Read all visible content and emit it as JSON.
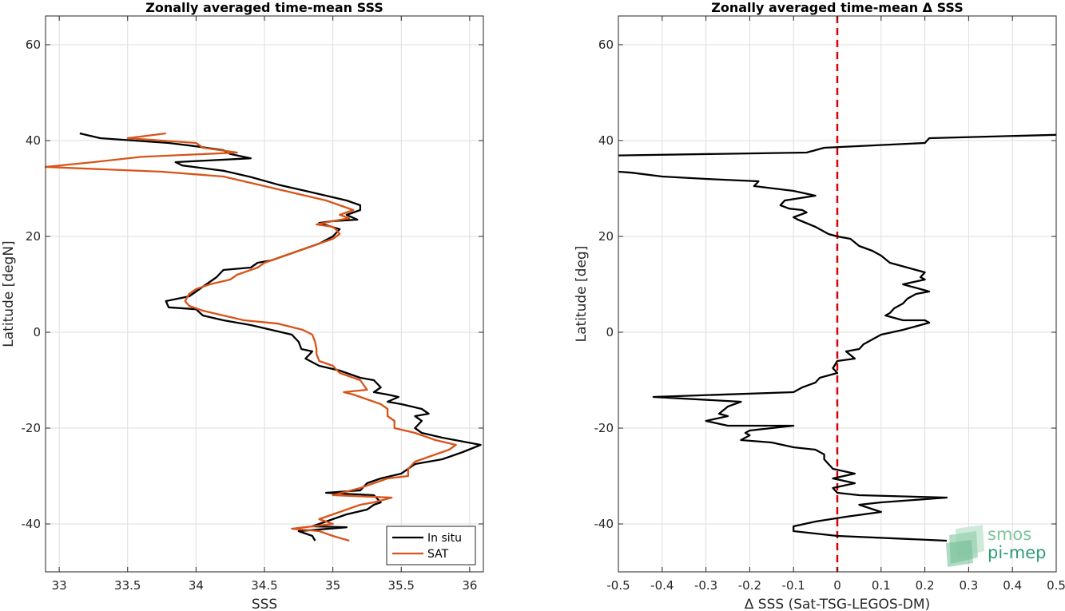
{
  "logo": {
    "line1": "smos",
    "line2": "pi-mep"
  },
  "chart_data": [
    {
      "type": "line",
      "title": "Zonally averaged time-mean SSS",
      "xlabel": "SSS",
      "ylabel": "Latitude [degN]",
      "xlim": [
        32.9,
        36.1
      ],
      "ylim": [
        -50,
        66
      ],
      "xticks": [
        33,
        33.5,
        34,
        34.5,
        35,
        35.5,
        36
      ],
      "yticks": [
        -40,
        -20,
        0,
        20,
        40,
        60
      ],
      "grid": true,
      "legend": "bottom-right",
      "series": [
        {
          "name": "In situ",
          "color": "#000000",
          "points": [
            [
              33.15,
              41.5
            ],
            [
              33.3,
              40.5
            ],
            [
              33.8,
              39.5
            ],
            [
              34.0,
              38.8
            ],
            [
              34.2,
              38.0
            ],
            [
              34.25,
              37.2
            ],
            [
              34.4,
              36.3
            ],
            [
              33.85,
              35.5
            ],
            [
              33.9,
              34.8
            ],
            [
              34.2,
              33.7
            ],
            [
              34.4,
              32.4
            ],
            [
              34.6,
              30.8
            ],
            [
              34.8,
              29.5
            ],
            [
              34.95,
              28.5
            ],
            [
              35.1,
              27.5
            ],
            [
              35.2,
              26.5
            ],
            [
              35.2,
              25.5
            ],
            [
              35.1,
              24.5
            ],
            [
              35.18,
              23.5
            ],
            [
              35.0,
              23.2
            ],
            [
              34.9,
              22.8
            ],
            [
              35.05,
              21.5
            ],
            [
              35.0,
              20.0
            ],
            [
              34.9,
              18.5
            ],
            [
              34.8,
              17.5
            ],
            [
              34.65,
              16.0
            ],
            [
              34.55,
              15.0
            ],
            [
              34.45,
              14.5
            ],
            [
              34.4,
              13.5
            ],
            [
              34.2,
              13.0
            ],
            [
              34.15,
              11.5
            ],
            [
              34.1,
              10.5
            ],
            [
              34.05,
              9.5
            ],
            [
              34.0,
              8.5
            ],
            [
              33.95,
              7.5
            ],
            [
              33.78,
              6.5
            ],
            [
              33.8,
              5.2
            ],
            [
              34.0,
              4.8
            ],
            [
              34.05,
              3.5
            ],
            [
              34.2,
              2.5
            ],
            [
              34.4,
              1.5
            ],
            [
              34.55,
              0.5
            ],
            [
              34.7,
              -0.5
            ],
            [
              34.75,
              -2.0
            ],
            [
              34.77,
              -3.5
            ],
            [
              34.85,
              -4.0
            ],
            [
              34.8,
              -5.5
            ],
            [
              34.9,
              -7.0
            ],
            [
              35.05,
              -8.0
            ],
            [
              35.2,
              -9.5
            ],
            [
              35.3,
              -10.0
            ],
            [
              35.35,
              -11.5
            ],
            [
              35.3,
              -12.5
            ],
            [
              35.4,
              -13.0
            ],
            [
              35.48,
              -13.5
            ],
            [
              35.4,
              -14.5
            ],
            [
              35.5,
              -15.0
            ],
            [
              35.65,
              -16.0
            ],
            [
              35.7,
              -17.0
            ],
            [
              35.6,
              -17.5
            ],
            [
              35.65,
              -18.5
            ],
            [
              35.6,
              -20.0
            ],
            [
              35.65,
              -21.0
            ],
            [
              35.8,
              -22.0
            ],
            [
              36.08,
              -23.5
            ],
            [
              35.95,
              -25.0
            ],
            [
              35.8,
              -26.5
            ],
            [
              35.6,
              -27.5
            ],
            [
              35.55,
              -28.5
            ],
            [
              35.5,
              -29.5
            ],
            [
              35.35,
              -30.5
            ],
            [
              35.25,
              -31.5
            ],
            [
              35.2,
              -33.0
            ],
            [
              34.95,
              -33.5
            ],
            [
              35.3,
              -34.0
            ],
            [
              35.35,
              -35.5
            ],
            [
              35.3,
              -36.0
            ],
            [
              35.25,
              -37.0
            ],
            [
              35.1,
              -38.0
            ],
            [
              35.0,
              -39.0
            ],
            [
              34.85,
              -40.5
            ],
            [
              35.1,
              -40.7
            ],
            [
              34.75,
              -41.5
            ],
            [
              34.85,
              -42.5
            ],
            [
              34.87,
              -43.5
            ]
          ]
        },
        {
          "name": "SAT",
          "color": "#d95319",
          "points": [
            [
              33.78,
              41.5
            ],
            [
              33.5,
              40.5
            ],
            [
              34.0,
              39.5
            ],
            [
              34.05,
              38.5
            ],
            [
              34.3,
              37.5
            ],
            [
              33.6,
              36.6
            ],
            [
              33.25,
              35.5
            ],
            [
              32.9,
              34.5
            ],
            [
              33.75,
              33.5
            ],
            [
              34.2,
              32.5
            ],
            [
              34.35,
              31.5
            ],
            [
              34.5,
              30.5
            ],
            [
              34.65,
              29.5
            ],
            [
              34.8,
              28.5
            ],
            [
              34.95,
              27.5
            ],
            [
              35.05,
              26.5
            ],
            [
              35.15,
              25.5
            ],
            [
              35.05,
              24.5
            ],
            [
              35.12,
              23.8
            ],
            [
              35.0,
              23.2
            ],
            [
              34.88,
              22.5
            ],
            [
              35.0,
              22.0
            ],
            [
              35.02,
              21.5
            ],
            [
              35.05,
              20.5
            ],
            [
              35.0,
              19.5
            ],
            [
              34.85,
              18.0
            ],
            [
              34.75,
              17.0
            ],
            [
              34.6,
              15.5
            ],
            [
              34.5,
              14.5
            ],
            [
              34.45,
              13.5
            ],
            [
              34.3,
              12.0
            ],
            [
              34.25,
              11.0
            ],
            [
              34.1,
              10.0
            ],
            [
              34.0,
              9.0
            ],
            [
              33.95,
              8.0
            ],
            [
              33.92,
              6.5
            ],
            [
              33.95,
              5.5
            ],
            [
              34.05,
              4.5
            ],
            [
              34.2,
              3.5
            ],
            [
              34.35,
              2.5
            ],
            [
              34.6,
              1.8
            ],
            [
              34.78,
              0.5
            ],
            [
              34.85,
              -0.5
            ],
            [
              34.87,
              -2.0
            ],
            [
              34.88,
              -3.5
            ],
            [
              34.88,
              -4.5
            ],
            [
              34.9,
              -6.0
            ],
            [
              35.0,
              -7.0
            ],
            [
              35.05,
              -8.5
            ],
            [
              35.2,
              -10.0
            ],
            [
              35.25,
              -12.0
            ],
            [
              35.08,
              -12.5
            ],
            [
              35.15,
              -13.0
            ],
            [
              35.35,
              -15.0
            ],
            [
              35.4,
              -16.0
            ],
            [
              35.4,
              -17.5
            ],
            [
              35.45,
              -18.5
            ],
            [
              35.45,
              -20.0
            ],
            [
              35.6,
              -21.0
            ],
            [
              35.75,
              -22.5
            ],
            [
              35.9,
              -23.5
            ],
            [
              35.85,
              -24.5
            ],
            [
              35.7,
              -26.0
            ],
            [
              35.6,
              -27.0
            ],
            [
              35.55,
              -28.5
            ],
            [
              35.55,
              -30.0
            ],
            [
              35.4,
              -30.5
            ],
            [
              35.3,
              -31.5
            ],
            [
              35.2,
              -32.5
            ],
            [
              35.0,
              -34.0
            ],
            [
              35.43,
              -34.5
            ],
            [
              35.3,
              -35.5
            ],
            [
              35.2,
              -36.0
            ],
            [
              35.1,
              -37.0
            ],
            [
              35.0,
              -38.0
            ],
            [
              34.9,
              -39.0
            ],
            [
              35.0,
              -40.0
            ],
            [
              34.7,
              -41.0
            ],
            [
              34.9,
              -41.5
            ],
            [
              35.0,
              -42.5
            ],
            [
              35.12,
              -43.5
            ]
          ]
        }
      ]
    },
    {
      "type": "line",
      "title": "Zonally averaged time-mean Δ SSS",
      "xlabel": "Δ SSS (Sat-TSG-LEGOS-DM)",
      "ylabel": "Latitude [deg]",
      "xlim": [
        -0.5,
        0.5
      ],
      "ylim": [
        -50,
        66
      ],
      "xticks": [
        -0.5,
        -0.4,
        -0.3,
        -0.2,
        -0.1,
        0,
        0.1,
        0.2,
        0.3,
        0.4,
        0.5
      ],
      "yticks": [
        -40,
        -20,
        0,
        20,
        40,
        60
      ],
      "grid": true,
      "reference_line": {
        "x": 0,
        "color": "#dd0000",
        "style": "dashed"
      },
      "series": [
        {
          "color": "#000000",
          "points": [
            [
              0.5,
              41.2
            ],
            [
              0.21,
              40.5
            ],
            [
              0.2,
              39.5
            ],
            [
              -0.03,
              38.5
            ],
            [
              -0.07,
              37.5
            ],
            [
              -0.5,
              36.9
            ]
          ]
        },
        {
          "color": "#000000",
          "points": [
            [
              -0.5,
              33.5
            ],
            [
              -0.47,
              33.3
            ],
            [
              -0.4,
              32.5
            ],
            [
              -0.3,
              32.0
            ],
            [
              -0.18,
              31.5
            ],
            [
              -0.19,
              30.5
            ],
            [
              -0.1,
              29.5
            ],
            [
              -0.05,
              28.5
            ],
            [
              -0.12,
              27.5
            ],
            [
              -0.13,
              26.5
            ],
            [
              -0.11,
              25.8
            ],
            [
              -0.08,
              25.5
            ],
            [
              -0.07,
              25.0
            ],
            [
              -0.1,
              24.0
            ],
            [
              -0.09,
              23.5
            ],
            [
              -0.05,
              22.0
            ],
            [
              -0.02,
              20.5
            ],
            [
              0.0,
              20.0
            ],
            [
              0.03,
              19.5
            ],
            [
              0.05,
              18.0
            ],
            [
              0.08,
              17.0
            ],
            [
              0.1,
              16.0
            ],
            [
              0.12,
              14.5
            ],
            [
              0.16,
              13.5
            ],
            [
              0.2,
              12.5
            ],
            [
              0.19,
              11.5
            ],
            [
              0.2,
              11.0
            ],
            [
              0.15,
              10.0
            ],
            [
              0.17,
              9.5
            ],
            [
              0.21,
              8.5
            ],
            [
              0.18,
              8.0
            ],
            [
              0.16,
              7.0
            ],
            [
              0.15,
              6.0
            ],
            [
              0.13,
              5.0
            ],
            [
              0.12,
              4.0
            ],
            [
              0.11,
              3.5
            ],
            [
              0.15,
              2.5
            ],
            [
              0.2,
              2.5
            ],
            [
              0.21,
              2.0
            ],
            [
              0.15,
              0.5
            ],
            [
              0.1,
              -0.5
            ],
            [
              0.08,
              -1.5
            ],
            [
              0.06,
              -2.5
            ],
            [
              0.05,
              -3.5
            ],
            [
              0.02,
              -4.0
            ],
            [
              0.04,
              -5.5
            ],
            [
              0.0,
              -6.0
            ],
            [
              -0.01,
              -7.5
            ],
            [
              0.0,
              -8.5
            ],
            [
              -0.02,
              -9.0
            ],
            [
              -0.04,
              -9.5
            ],
            [
              -0.05,
              -10.5
            ],
            [
              -0.08,
              -11.5
            ],
            [
              -0.1,
              -12.5
            ],
            [
              -0.42,
              -13.5
            ],
            [
              -0.22,
              -14.5
            ],
            [
              -0.25,
              -15.5
            ],
            [
              -0.27,
              -17.0
            ],
            [
              -0.25,
              -17.5
            ],
            [
              -0.3,
              -18.5
            ],
            [
              -0.25,
              -19.5
            ],
            [
              -0.1,
              -19.5
            ],
            [
              -0.2,
              -20.5
            ],
            [
              -0.21,
              -21.0
            ],
            [
              -0.2,
              -21.5
            ],
            [
              -0.22,
              -22.5
            ],
            [
              -0.15,
              -23.0
            ],
            [
              -0.1,
              -24.0
            ],
            [
              -0.05,
              -24.5
            ],
            [
              -0.03,
              -25.5
            ],
            [
              -0.03,
              -26.5
            ],
            [
              -0.02,
              -27.5
            ],
            [
              -0.01,
              -28.5
            ],
            [
              0.04,
              -29.5
            ],
            [
              -0.01,
              -30.5
            ],
            [
              0.04,
              -31.5
            ],
            [
              -0.01,
              -32.5
            ],
            [
              0.0,
              -33.5
            ],
            [
              0.05,
              -34.0
            ],
            [
              0.25,
              -34.5
            ],
            [
              0.1,
              -35.5
            ],
            [
              0.05,
              -36.0
            ],
            [
              0.1,
              -37.5
            ],
            [
              0.02,
              -38.5
            ],
            [
              -0.05,
              -39.5
            ],
            [
              -0.1,
              -40.5
            ],
            [
              -0.1,
              -41.5
            ],
            [
              0.0,
              -42.5
            ],
            [
              0.25,
              -43.5
            ]
          ]
        }
      ]
    }
  ]
}
